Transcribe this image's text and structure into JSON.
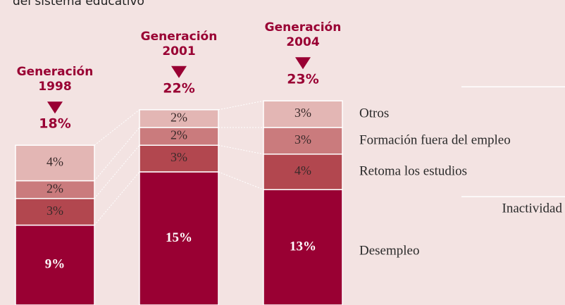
{
  "chart_data": {
    "type": "stacked_bar",
    "title": "del sistema educativo",
    "categories": [
      "Generación 1998",
      "Generación 2001",
      "Generación 2004"
    ],
    "series": [
      {
        "name": "Desempleo",
        "color": "#990033",
        "values": [
          9,
          15,
          13
        ],
        "value_labels": [
          "9%",
          "15%",
          "13%"
        ]
      },
      {
        "name": "Retoma los estudios",
        "color": "#b2474f",
        "values": [
          3,
          3,
          4
        ],
        "value_labels": [
          "3%",
          "3%",
          "4%"
        ]
      },
      {
        "name": "Formación fuera del empleo",
        "color": "#ca7b7d",
        "values": [
          2,
          2,
          3
        ],
        "value_labels": [
          "2%",
          "2%",
          "3%"
        ]
      },
      {
        "name": "Otros",
        "color": "#e3b6b4",
        "values": [
          4,
          2,
          3
        ],
        "value_labels": [
          "4%",
          "2%",
          "3%"
        ]
      }
    ],
    "totals": {
      "values": [
        18,
        22,
        23
      ],
      "value_labels": [
        "18%",
        "22%",
        "23%"
      ]
    },
    "group_label": "Inactividad"
  }
}
